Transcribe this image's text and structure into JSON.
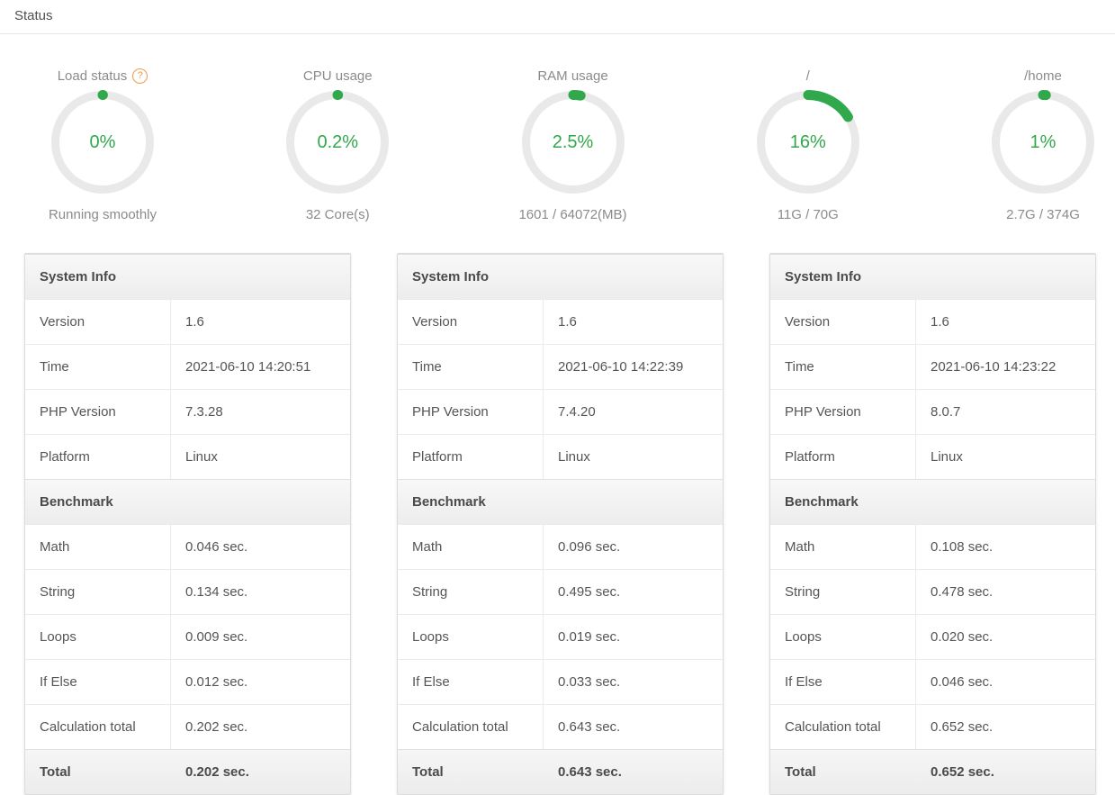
{
  "page": {
    "title": "Status"
  },
  "colors": {
    "green": "#31a84b",
    "orange": "#ef9b49",
    "ring_gray": "#e9e9e9"
  },
  "help_icon_glyph": "?",
  "gauges": [
    {
      "label": "Load status",
      "has_help_icon": true,
      "percent": 0,
      "display": "0%",
      "caption": "Running smoothly"
    },
    {
      "label": "CPU usage",
      "has_help_icon": false,
      "percent": 0.2,
      "display": "0.2%",
      "caption": "32 Core(s)"
    },
    {
      "label": "RAM usage",
      "has_help_icon": false,
      "percent": 2.5,
      "display": "2.5%",
      "caption": "1601 / 64072(MB)"
    },
    {
      "label": "/",
      "has_help_icon": false,
      "percent": 16,
      "display": "16%",
      "caption": "11G / 70G"
    },
    {
      "label": "/home",
      "has_help_icon": false,
      "percent": 1,
      "display": "1%",
      "caption": "2.7G / 374G"
    }
  ],
  "tables": [
    {
      "system_info_title": "System Info",
      "info": [
        {
          "label": "Version",
          "value": "1.6"
        },
        {
          "label": "Time",
          "value": "2021-06-10 14:20:51"
        },
        {
          "label": "PHP Version",
          "value": "7.3.28"
        },
        {
          "label": "Platform",
          "value": "Linux"
        }
      ],
      "benchmark_title": "Benchmark",
      "bench": [
        {
          "label": "Math",
          "value": "0.046 sec."
        },
        {
          "label": "String",
          "value": "0.134 sec."
        },
        {
          "label": "Loops",
          "value": "0.009 sec."
        },
        {
          "label": "If Else",
          "value": "0.012 sec."
        },
        {
          "label": "Calculation total",
          "value": "0.202 sec."
        }
      ],
      "total": {
        "label": "Total",
        "value": "0.202 sec."
      }
    },
    {
      "system_info_title": "System Info",
      "info": [
        {
          "label": "Version",
          "value": "1.6"
        },
        {
          "label": "Time",
          "value": "2021-06-10 14:22:39"
        },
        {
          "label": "PHP Version",
          "value": "7.4.20"
        },
        {
          "label": "Platform",
          "value": "Linux"
        }
      ],
      "benchmark_title": "Benchmark",
      "bench": [
        {
          "label": "Math",
          "value": "0.096 sec."
        },
        {
          "label": "String",
          "value": "0.495 sec."
        },
        {
          "label": "Loops",
          "value": "0.019 sec."
        },
        {
          "label": "If Else",
          "value": "0.033 sec."
        },
        {
          "label": "Calculation total",
          "value": "0.643 sec."
        }
      ],
      "total": {
        "label": "Total",
        "value": "0.643 sec."
      }
    },
    {
      "system_info_title": "System Info",
      "info": [
        {
          "label": "Version",
          "value": "1.6"
        },
        {
          "label": "Time",
          "value": "2021-06-10 14:23:22"
        },
        {
          "label": "PHP Version",
          "value": "8.0.7"
        },
        {
          "label": "Platform",
          "value": "Linux"
        }
      ],
      "benchmark_title": "Benchmark",
      "bench": [
        {
          "label": "Math",
          "value": "0.108 sec."
        },
        {
          "label": "String",
          "value": "0.478 sec."
        },
        {
          "label": "Loops",
          "value": "0.020 sec."
        },
        {
          "label": "If Else",
          "value": "0.046 sec."
        },
        {
          "label": "Calculation total",
          "value": "0.652 sec."
        }
      ],
      "total": {
        "label": "Total",
        "value": "0.652 sec."
      }
    }
  ]
}
